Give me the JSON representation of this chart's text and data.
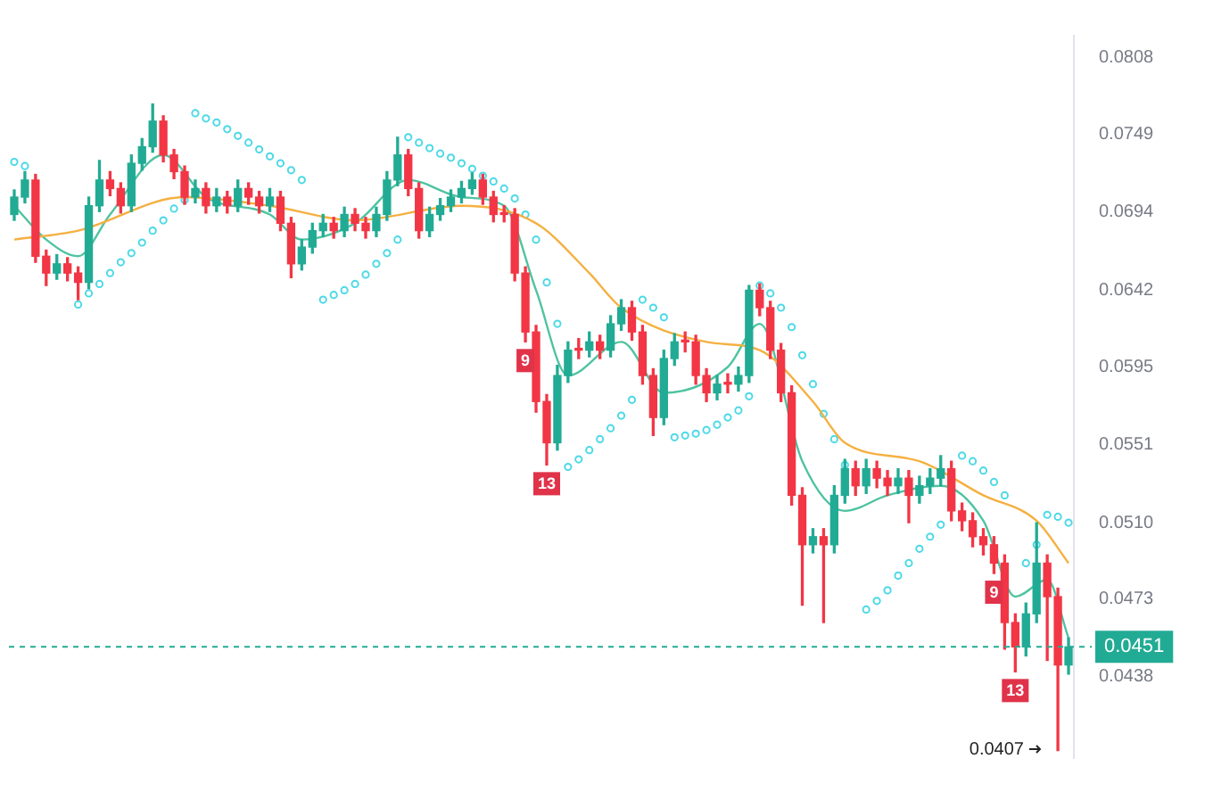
{
  "chart_data": {
    "type": "candlestick",
    "categories": [
      null,
      null,
      null,
      null,
      null,
      null,
      null,
      null,
      null,
      null,
      null,
      null,
      null,
      null,
      null,
      null,
      null,
      null,
      null,
      null,
      null,
      null,
      null,
      null,
      null,
      null,
      null,
      null,
      null,
      null,
      null,
      null,
      null,
      null,
      null,
      null,
      null,
      null,
      null,
      null,
      null,
      null,
      null,
      null,
      null,
      null,
      null,
      null,
      null,
      null,
      null,
      null,
      null,
      null,
      null,
      null,
      null,
      null,
      null,
      null,
      null,
      null,
      null,
      null,
      null,
      null,
      null,
      null,
      null,
      null,
      null,
      null,
      null,
      null,
      null,
      null,
      null,
      null,
      null,
      null,
      null,
      null,
      null,
      null,
      null,
      null,
      null,
      null,
      null,
      null,
      null,
      null,
      null,
      null,
      null,
      null,
      null,
      null,
      null,
      null
    ],
    "ohlc": [
      [
        0.0692,
        0.0709,
        0.0688,
        0.0704
      ],
      [
        0.0704,
        0.0722,
        0.07,
        0.0716
      ],
      [
        0.0716,
        0.072,
        0.066,
        0.0664
      ],
      [
        0.0664,
        0.0668,
        0.0645,
        0.0653
      ],
      [
        0.0653,
        0.0665,
        0.0649,
        0.0659
      ],
      [
        0.0659,
        0.0663,
        0.0648,
        0.0653
      ],
      [
        0.0653,
        0.0657,
        0.0636,
        0.0647
      ],
      [
        0.0647,
        0.0704,
        0.0643,
        0.0698
      ],
      [
        0.0698,
        0.073,
        0.0694,
        0.0716
      ],
      [
        0.0716,
        0.0722,
        0.0705,
        0.071
      ],
      [
        0.071,
        0.0714,
        0.0693,
        0.0698
      ],
      [
        0.0698,
        0.0734,
        0.0694,
        0.0728
      ],
      [
        0.0728,
        0.0746,
        0.0723,
        0.074
      ],
      [
        0.074,
        0.0772,
        0.0736,
        0.0759
      ],
      [
        0.0759,
        0.0763,
        0.0729,
        0.0734
      ],
      [
        0.0734,
        0.0738,
        0.0717,
        0.0722
      ],
      [
        0.0722,
        0.0726,
        0.0699,
        0.0704
      ],
      [
        0.0704,
        0.0716,
        0.07,
        0.071
      ],
      [
        0.071,
        0.0714,
        0.0693,
        0.0698
      ],
      [
        0.0698,
        0.071,
        0.0694,
        0.0704
      ],
      [
        0.0704,
        0.0708,
        0.0693,
        0.0698
      ],
      [
        0.0698,
        0.0716,
        0.0694,
        0.071
      ],
      [
        0.071,
        0.0714,
        0.0699,
        0.0704
      ],
      [
        0.0704,
        0.0708,
        0.0693,
        0.0698
      ],
      [
        0.0698,
        0.071,
        0.0694,
        0.0704
      ],
      [
        0.0704,
        0.0708,
        0.0681,
        0.0686
      ],
      [
        0.0686,
        0.069,
        0.065,
        0.0659
      ],
      [
        0.0659,
        0.0675,
        0.0655,
        0.067
      ],
      [
        0.067,
        0.0686,
        0.0666,
        0.0681
      ],
      [
        0.0681,
        0.0692,
        0.0677,
        0.0686
      ],
      [
        0.0686,
        0.069,
        0.0676,
        0.0681
      ],
      [
        0.0681,
        0.0697,
        0.0677,
        0.0692
      ],
      [
        0.0692,
        0.0696,
        0.0681,
        0.0686
      ],
      [
        0.0686,
        0.069,
        0.0676,
        0.0681
      ],
      [
        0.0681,
        0.0697,
        0.0677,
        0.0692
      ],
      [
        0.0692,
        0.0722,
        0.0688,
        0.0716
      ],
      [
        0.0716,
        0.0747,
        0.0712,
        0.0734
      ],
      [
        0.0734,
        0.0738,
        0.0705,
        0.071
      ],
      [
        0.071,
        0.0714,
        0.0676,
        0.0681
      ],
      [
        0.0681,
        0.0697,
        0.0677,
        0.0692
      ],
      [
        0.0692,
        0.0703,
        0.0688,
        0.0698
      ],
      [
        0.0698,
        0.0709,
        0.0694,
        0.0704
      ],
      [
        0.0704,
        0.0715,
        0.07,
        0.071
      ],
      [
        0.071,
        0.0721,
        0.0706,
        0.0716
      ],
      [
        0.0716,
        0.072,
        0.0699,
        0.0704
      ],
      [
        0.0704,
        0.0708,
        0.0687,
        0.0692
      ],
      [
        0.0692,
        0.0698,
        0.0687,
        0.0692
      ],
      [
        0.0692,
        0.0696,
        0.0648,
        0.0653
      ],
      [
        0.0653,
        0.0657,
        0.061,
        0.0616
      ],
      [
        0.0616,
        0.062,
        0.0569,
        0.0575
      ],
      [
        0.0575,
        0.0579,
        0.054,
        0.0552
      ],
      [
        0.0552,
        0.0596,
        0.0548,
        0.059
      ],
      [
        0.059,
        0.061,
        0.0586,
        0.0605
      ],
      [
        0.0605,
        0.0612,
        0.06,
        0.0605
      ],
      [
        0.0605,
        0.0616,
        0.0601,
        0.061
      ],
      [
        0.061,
        0.0614,
        0.06,
        0.0605
      ],
      [
        0.0605,
        0.0626,
        0.0601,
        0.0621
      ],
      [
        0.0621,
        0.0636,
        0.0617,
        0.0631
      ],
      [
        0.0631,
        0.0635,
        0.0611,
        0.0616
      ],
      [
        0.0616,
        0.062,
        0.0585,
        0.059
      ],
      [
        0.059,
        0.0594,
        0.0556,
        0.0566
      ],
      [
        0.0566,
        0.0605,
        0.0562,
        0.06
      ],
      [
        0.06,
        0.0615,
        0.0596,
        0.061
      ],
      [
        0.061,
        0.0616,
        0.0604,
        0.061
      ],
      [
        0.061,
        0.0614,
        0.0585,
        0.059
      ],
      [
        0.059,
        0.0594,
        0.0575,
        0.058
      ],
      [
        0.058,
        0.059,
        0.0576,
        0.0585
      ],
      [
        0.0585,
        0.0591,
        0.058,
        0.0585
      ],
      [
        0.0585,
        0.0595,
        0.0581,
        0.059
      ],
      [
        0.059,
        0.0645,
        0.0586,
        0.0642
      ],
      [
        0.0642,
        0.0646,
        0.0626,
        0.0631
      ],
      [
        0.0631,
        0.0635,
        0.06,
        0.0605
      ],
      [
        0.0605,
        0.0609,
        0.0575,
        0.058
      ],
      [
        0.058,
        0.0584,
        0.0519,
        0.0524
      ],
      [
        0.0524,
        0.0528,
        0.047,
        0.0499
      ],
      [
        0.0499,
        0.0507,
        0.0495,
        0.0503
      ],
      [
        0.0503,
        0.0507,
        0.0462,
        0.0499
      ],
      [
        0.0499,
        0.0529,
        0.0495,
        0.0524
      ],
      [
        0.0524,
        0.0543,
        0.052,
        0.0538
      ],
      [
        0.0538,
        0.0542,
        0.0524,
        0.0529
      ],
      [
        0.0529,
        0.0543,
        0.0525,
        0.0538
      ],
      [
        0.0538,
        0.0542,
        0.0528,
        0.0533
      ],
      [
        0.0533,
        0.0537,
        0.0524,
        0.0529
      ],
      [
        0.0529,
        0.0538,
        0.0525,
        0.0533
      ],
      [
        0.0533,
        0.0537,
        0.051,
        0.0524
      ],
      [
        0.0524,
        0.0534,
        0.052,
        0.0529
      ],
      [
        0.0529,
        0.0538,
        0.0525,
        0.0533
      ],
      [
        0.0533,
        0.0545,
        0.0529,
        0.0538
      ],
      [
        0.0538,
        0.0542,
        0.0511,
        0.0516
      ],
      [
        0.0516,
        0.052,
        0.0506,
        0.0511
      ],
      [
        0.0511,
        0.0515,
        0.0498,
        0.0503
      ],
      [
        0.0503,
        0.0507,
        0.0494,
        0.0499
      ],
      [
        0.0499,
        0.0503,
        0.0485,
        0.049
      ],
      [
        0.049,
        0.0494,
        0.045,
        0.0462
      ],
      [
        0.0462,
        0.0466,
        0.044,
        0.0451
      ],
      [
        0.0451,
        0.0471,
        0.0447,
        0.0466
      ],
      [
        0.0466,
        0.051,
        0.0462,
        0.049
      ],
      [
        0.049,
        0.0494,
        0.0445,
        0.0474
      ],
      [
        0.0474,
        0.0478,
        0.0407,
        0.0443
      ],
      [
        0.0443,
        0.0455,
        0.0439,
        0.0451
      ]
    ],
    "colors": [
      "#22ab94",
      "#22ab94",
      "#f23645",
      "#f23645",
      "#22ab94",
      "#f23645",
      "#f23645",
      "#22ab94",
      "#22ab94",
      "#f23645",
      "#f23645",
      "#22ab94",
      "#22ab94",
      "#22ab94",
      "#f23645",
      "#f23645",
      "#f23645",
      "#22ab94",
      "#f23645",
      "#22ab94",
      "#f23645",
      "#22ab94",
      "#f23645",
      "#f23645",
      "#22ab94",
      "#f23645",
      "#f23645",
      "#22ab94",
      "#22ab94",
      "#22ab94",
      "#f23645",
      "#22ab94",
      "#f23645",
      "#f23645",
      "#22ab94",
      "#22ab94",
      "#22ab94",
      "#f23645",
      "#f23645",
      "#22ab94",
      "#22ab94",
      "#22ab94",
      "#22ab94",
      "#22ab94",
      "#f23645",
      "#f23645",
      "#f23645",
      "#f23645",
      "#f23645",
      "#f23645",
      "#f23645",
      "#22ab94",
      "#22ab94",
      "#f23645",
      "#22ab94",
      "#f23645",
      "#22ab94",
      "#22ab94",
      "#f23645",
      "#f23645",
      "#f23645",
      "#22ab94",
      "#22ab94",
      "#f23645",
      "#f23645",
      "#f23645",
      "#22ab94",
      "#f23645",
      "#22ab94",
      "#22ab94",
      "#f23645",
      "#f23645",
      "#f23645",
      "#f23645",
      "#f23645",
      "#22ab94",
      "#f23645",
      "#22ab94",
      "#22ab94",
      "#f23645",
      "#22ab94",
      "#f23645",
      "#f23645",
      "#22ab94",
      "#f23645",
      "#22ab94",
      "#22ab94",
      "#22ab94",
      "#f23645",
      "#f23645",
      "#f23645",
      "#f23645",
      "#f23645",
      "#f23645",
      "#f23645",
      "#22ab94",
      "#22ab94",
      "#f23645",
      "#f23645",
      "#22ab94"
    ],
    "value_labels": [
      null,
      null,
      null,
      null,
      null,
      null,
      null,
      null,
      null,
      null,
      null,
      null,
      null,
      null,
      null,
      null,
      null,
      null,
      null,
      null,
      null,
      null,
      null,
      null,
      null,
      null,
      null,
      null,
      null,
      null,
      null,
      null,
      null,
      null,
      null,
      null,
      null,
      null,
      null,
      null,
      null,
      null,
      null,
      null,
      null,
      null,
      null,
      null,
      "9",
      null,
      "13",
      null,
      null,
      null,
      null,
      null,
      null,
      null,
      null,
      null,
      null,
      null,
      null,
      null,
      null,
      null,
      null,
      null,
      null,
      null,
      null,
      null,
      null,
      null,
      null,
      null,
      null,
      null,
      null,
      null,
      null,
      null,
      null,
      null,
      null,
      null,
      null,
      null,
      null,
      null,
      null,
      null,
      "9",
      null,
      "13",
      null,
      null,
      null,
      null,
      null
    ],
    "series": [
      {
        "type": "line",
        "color": "#f5b041",
        "values": [
          0.0675,
          null,
          null,
          null,
          null,
          null,
          0.0681,
          null,
          null,
          null,
          null,
          null,
          null,
          null,
          null,
          null,
          0.0704,
          null,
          null,
          null,
          null,
          null,
          null,
          null,
          0.0698,
          null,
          null,
          null,
          null,
          null,
          null,
          null,
          0.0688,
          null,
          null,
          null,
          null,
          null,
          null,
          null,
          null,
          null,
          0.0698,
          null,
          null,
          null,
          null,
          null,
          null,
          0.0686,
          null,
          null,
          null,
          null,
          0.0653,
          null,
          null,
          0.0631,
          null,
          null,
          null,
          null,
          null,
          null,
          null,
          0.061,
          null,
          null,
          null,
          null,
          0.0605,
          null,
          null,
          null,
          null,
          0.0575,
          null,
          null,
          0.0552,
          null,
          null,
          null,
          null,
          null,
          null,
          0.0542,
          null,
          null,
          null,
          null,
          null,
          0.0524,
          null,
          null,
          null,
          null,
          0.0511,
          null,
          null,
          0.049
        ]
      },
      {
        "type": "line",
        "color": "#4fc3a1",
        "values": [
          0.0698,
          null,
          null,
          0.0675,
          null,
          null,
          0.0664,
          null,
          null,
          0.0692,
          null,
          null,
          null,
          null,
          0.0734,
          null,
          null,
          null,
          0.0704,
          null,
          null,
          null,
          null,
          null,
          0.0692,
          null,
          null,
          0.0675,
          null,
          null,
          null,
          null,
          0.0686,
          null,
          null,
          null,
          null,
          0.0716,
          null,
          null,
          null,
          null,
          0.0704,
          null,
          null,
          null,
          0.0698,
          null,
          null,
          0.0642,
          null,
          null,
          0.059,
          null,
          null,
          null,
          null,
          0.061,
          null,
          null,
          null,
          0.058,
          null,
          null,
          null,
          null,
          null,
          0.0595,
          null,
          null,
          0.0621,
          null,
          null,
          null,
          0.0542,
          null,
          null,
          null,
          0.0516,
          null,
          null,
          null,
          0.0524,
          null,
          null,
          null,
          null,
          0.0529,
          null,
          null,
          null,
          0.0511,
          null,
          null,
          0.0474,
          null,
          null,
          0.0482,
          null,
          0.0455
        ]
      },
      {
        "type": "scatter",
        "color": "#4dd9e6",
        "marker": "circle",
        "values": [
          0.0729,
          0.0726,
          null,
          null,
          null,
          null,
          0.0633,
          0.064,
          0.0646,
          0.0653,
          0.066,
          0.0666,
          0.0673,
          0.0681,
          0.0688,
          0.0696,
          0.0702,
          0.0765,
          0.0761,
          0.0758,
          0.0753,
          0.0748,
          0.0743,
          0.0738,
          0.0733,
          0.0728,
          0.0723,
          0.0716,
          null,
          0.0636,
          0.0639,
          0.0642,
          0.0646,
          0.0652,
          0.0659,
          0.0666,
          0.0675,
          0.0747,
          0.0743,
          0.0739,
          0.0735,
          0.0732,
          0.0728,
          0.0724,
          0.0719,
          0.0715,
          0.071,
          0.0703,
          0.0692,
          0.0675,
          0.0647,
          0.0621,
          0.0539,
          0.0543,
          0.0548,
          0.0554,
          0.056,
          0.0567,
          0.0576,
          0.0636,
          0.0631,
          0.0625,
          0.0555,
          0.0556,
          0.0557,
          0.0559,
          0.0562,
          0.0566,
          0.057,
          0.0578,
          0.0645,
          0.064,
          0.0631,
          0.0619,
          0.0602,
          0.0585,
          0.0568,
          0.0554,
          0.054,
          null,
          0.0468,
          0.0472,
          0.0477,
          0.0484,
          0.049,
          0.0497,
          0.0503,
          0.0509,
          null,
          0.0545,
          0.0542,
          0.0537,
          0.0531,
          0.0524,
          null,
          0.049,
          0.0499,
          0.0514,
          0.0513,
          0.051
        ]
      }
    ],
    "ylim": [
      0.0404,
      0.0826
    ],
    "yticks": [
      0.0808,
      0.0749,
      0.0694,
      0.0642,
      0.0595,
      0.0551,
      {
        "value": 0.051,
        "label": "0.0510"
      },
      0.0473,
      0.0438
    ],
    "log": "y",
    "tick_labels": "y",
    "grid": false,
    "legend": false,
    "ref_lines": [
      {
        "axis": "y",
        "value": 0.0451,
        "label": "0.0451",
        "color": "#22ab94",
        "line_style": "dashed"
      }
    ],
    "annotations": [
      "0.0407"
    ]
  }
}
